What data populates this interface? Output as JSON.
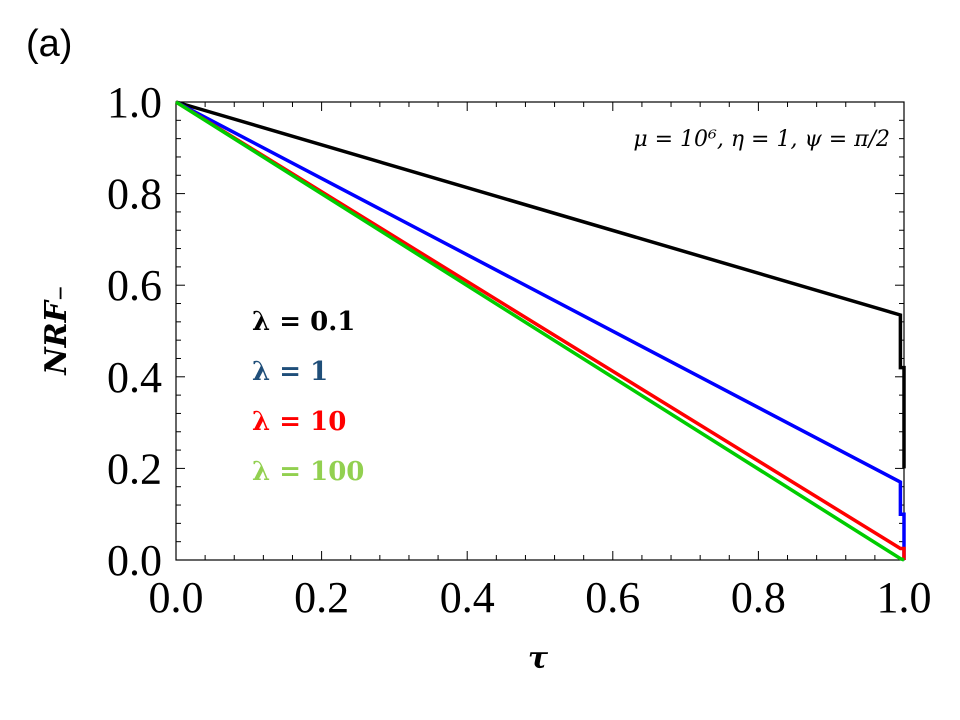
{
  "panel_label": "(a)",
  "chart_data": {
    "type": "line",
    "title": "",
    "xlabel": "τ",
    "ylabel": "NRF₋",
    "xlim": [
      0,
      1
    ],
    "ylim": [
      0,
      1
    ],
    "x_ticks": [
      "0.0",
      "0.2",
      "0.4",
      "0.6",
      "0.8",
      "1.0"
    ],
    "y_ticks": [
      "0.0",
      "0.2",
      "0.4",
      "0.6",
      "0.8",
      "1.0"
    ],
    "annotation": "μ = 10⁶, η = 1, ψ = π/2",
    "grid": false,
    "legend_position": "left-center",
    "series": [
      {
        "name": "λ = 0.1",
        "color": "#000000",
        "label_color": "#000000",
        "x": [
          0.0,
          0.995,
          0.995,
          1.0,
          1.0
        ],
        "y": [
          1.0,
          0.535,
          0.42,
          0.42,
          0.2
        ]
      },
      {
        "name": "λ = 1",
        "color": "#0000ff",
        "label_color": "#1f4e79",
        "x": [
          0.0,
          0.995,
          0.995,
          1.0,
          1.0
        ],
        "y": [
          1.0,
          0.17,
          0.1,
          0.1,
          0.0
        ]
      },
      {
        "name": "λ = 10",
        "color": "#ff0000",
        "label_color": "#ff0000",
        "x": [
          0.0,
          0.995,
          1.0,
          1.0
        ],
        "y": [
          1.0,
          0.025,
          0.025,
          0.0
        ]
      },
      {
        "name": "λ = 100",
        "color": "#00cc00",
        "label_color": "#92d050",
        "x": [
          0.0,
          0.995,
          1.0
        ],
        "y": [
          1.0,
          0.003,
          0.0
        ]
      }
    ]
  }
}
